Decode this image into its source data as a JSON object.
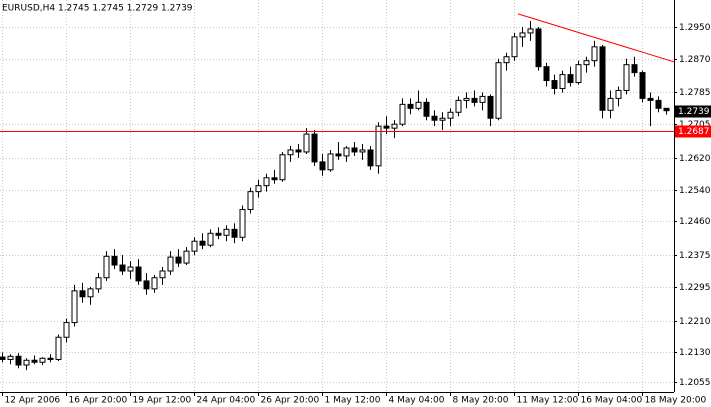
{
  "chart_data": {
    "type": "candlestick",
    "title": "EURUSD,H4  1.2745 1.2745 1.2729 1.2739",
    "categories": [
      "12 Apr 2006",
      null,
      null,
      null,
      null,
      null,
      null,
      null,
      "16 Apr 20:00",
      null,
      null,
      null,
      null,
      null,
      null,
      null,
      "19 Apr 12:00",
      null,
      null,
      null,
      null,
      null,
      null,
      null,
      "24 Apr 04:00",
      null,
      null,
      null,
      null,
      null,
      null,
      null,
      "26 Apr 20:00",
      null,
      null,
      null,
      null,
      null,
      null,
      null,
      "1 May 12:00",
      null,
      null,
      null,
      null,
      null,
      null,
      null,
      "4 May 04:00",
      null,
      null,
      null,
      null,
      null,
      null,
      null,
      "8 May 20:00",
      null,
      null,
      null,
      null,
      null,
      null,
      null,
      "11 May 12:00",
      null,
      null,
      null,
      null,
      null,
      null,
      null,
      "16 May 04:00",
      null,
      null,
      null,
      null,
      null,
      null,
      null,
      "18 May 20:00",
      null,
      null,
      null
    ],
    "candles": [
      [
        1.2118,
        1.213,
        1.2105,
        1.2112
      ],
      [
        1.2112,
        1.2125,
        1.21,
        1.212
      ],
      [
        1.212,
        1.2128,
        1.209,
        1.2098
      ],
      [
        1.2098,
        1.2115,
        1.2085,
        1.211
      ],
      [
        1.211,
        1.2122,
        1.21,
        1.2105
      ],
      [
        1.2105,
        1.2118,
        1.2098,
        1.2115
      ],
      [
        1.2115,
        1.2125,
        1.2105,
        1.2112
      ],
      [
        1.2112,
        1.2175,
        1.2108,
        1.2168
      ],
      [
        1.2168,
        1.2215,
        1.2155,
        1.2205
      ],
      [
        1.2205,
        1.23,
        1.2195,
        1.2285
      ],
      [
        1.2285,
        1.2305,
        1.2255,
        1.227
      ],
      [
        1.227,
        1.2295,
        1.225,
        1.229
      ],
      [
        1.229,
        1.233,
        1.228,
        1.2318
      ],
      [
        1.2318,
        1.2385,
        1.231,
        1.2372
      ],
      [
        1.2372,
        1.239,
        1.234,
        1.235
      ],
      [
        1.235,
        1.2375,
        1.2325,
        1.2335
      ],
      [
        1.2335,
        1.236,
        1.2315,
        1.2345
      ],
      [
        1.2345,
        1.2365,
        1.23,
        1.231
      ],
      [
        1.231,
        1.233,
        1.2275,
        1.229
      ],
      [
        1.229,
        1.2325,
        1.228,
        1.2318
      ],
      [
        1.2318,
        1.2345,
        1.23,
        1.2335
      ],
      [
        1.2335,
        1.2385,
        1.2325,
        1.237
      ],
      [
        1.237,
        1.239,
        1.2345,
        1.2355
      ],
      [
        1.2355,
        1.2395,
        1.235,
        1.2385
      ],
      [
        1.2385,
        1.242,
        1.2375,
        1.241
      ],
      [
        1.241,
        1.243,
        1.239,
        1.24
      ],
      [
        1.24,
        1.244,
        1.2395,
        1.243
      ],
      [
        1.243,
        1.2445,
        1.2415,
        1.2425
      ],
      [
        1.2425,
        1.245,
        1.241,
        1.244
      ],
      [
        1.244,
        1.2455,
        1.2405,
        1.242
      ],
      [
        1.242,
        1.25,
        1.241,
        1.249
      ],
      [
        1.249,
        1.2545,
        1.248,
        1.2535
      ],
      [
        1.2535,
        1.2565,
        1.252,
        1.255
      ],
      [
        1.255,
        1.258,
        1.2535,
        1.257
      ],
      [
        1.257,
        1.259,
        1.2555,
        1.2565
      ],
      [
        1.2565,
        1.2635,
        1.256,
        1.2628
      ],
      [
        1.2628,
        1.265,
        1.261,
        1.264
      ],
      [
        1.264,
        1.2655,
        1.262,
        1.2635
      ],
      [
        1.2635,
        1.2695,
        1.263,
        1.268
      ],
      [
        1.268,
        1.269,
        1.26,
        1.261
      ],
      [
        1.261,
        1.263,
        1.2575,
        1.259
      ],
      [
        1.259,
        1.264,
        1.2585,
        1.263
      ],
      [
        1.263,
        1.266,
        1.2615,
        1.2625
      ],
      [
        1.2625,
        1.265,
        1.261,
        1.2645
      ],
      [
        1.2645,
        1.266,
        1.2625,
        1.2635
      ],
      [
        1.2635,
        1.2655,
        1.2615,
        1.264
      ],
      [
        1.264,
        1.265,
        1.259,
        1.26
      ],
      [
        1.26,
        1.271,
        1.258,
        1.27
      ],
      [
        1.27,
        1.2725,
        1.268,
        1.2695
      ],
      [
        1.2695,
        1.2715,
        1.267,
        1.2705
      ],
      [
        1.2705,
        1.277,
        1.27,
        1.2755
      ],
      [
        1.2755,
        1.277,
        1.273,
        1.2745
      ],
      [
        1.2745,
        1.279,
        1.274,
        1.276
      ],
      [
        1.276,
        1.277,
        1.2715,
        1.2725
      ],
      [
        1.2725,
        1.274,
        1.27,
        1.2715
      ],
      [
        1.2715,
        1.2735,
        1.269,
        1.272
      ],
      [
        1.272,
        1.2745,
        1.27,
        1.2735
      ],
      [
        1.2735,
        1.2775,
        1.2725,
        1.2765
      ],
      [
        1.2765,
        1.2785,
        1.2745,
        1.277
      ],
      [
        1.277,
        1.279,
        1.275,
        1.276
      ],
      [
        1.276,
        1.2785,
        1.274,
        1.2775
      ],
      [
        1.2775,
        1.278,
        1.27,
        1.272
      ],
      [
        1.272,
        1.287,
        1.2715,
        1.286
      ],
      [
        1.286,
        1.2885,
        1.284,
        1.2875
      ],
      [
        1.2875,
        1.2935,
        1.2865,
        1.2925
      ],
      [
        1.2925,
        1.295,
        1.29,
        1.2935
      ],
      [
        1.2935,
        1.2965,
        1.2915,
        1.2945
      ],
      [
        1.2945,
        1.295,
        1.284,
        1.285
      ],
      [
        1.285,
        1.286,
        1.28,
        1.2815
      ],
      [
        1.2815,
        1.283,
        1.278,
        1.2795
      ],
      [
        1.2795,
        1.284,
        1.2785,
        1.283
      ],
      [
        1.283,
        1.285,
        1.28,
        1.281
      ],
      [
        1.281,
        1.2865,
        1.2805,
        1.2855
      ],
      [
        1.2855,
        1.2875,
        1.2835,
        1.2865
      ],
      [
        1.2865,
        1.2915,
        1.285,
        1.29
      ],
      [
        1.29,
        1.2905,
        1.272,
        1.274
      ],
      [
        1.274,
        1.279,
        1.272,
        1.277
      ],
      [
        1.277,
        1.28,
        1.275,
        1.279
      ],
      [
        1.279,
        1.287,
        1.278,
        1.2855
      ],
      [
        1.2855,
        1.2875,
        1.2825,
        1.2835
      ],
      [
        1.2835,
        1.284,
        1.276,
        1.277
      ],
      [
        1.277,
        1.2785,
        1.27,
        1.2765
      ],
      [
        1.2765,
        1.2775,
        1.2735,
        1.2745
      ],
      [
        1.2745,
        1.2745,
        1.2729,
        1.2739
      ]
    ],
    "ylim": [
      1.203,
      1.3018
    ],
    "yticks": [
      {
        "value": 1.2055,
        "label": "1.2055"
      },
      {
        "value": 1.213,
        "label": "1.2130"
      },
      {
        "value": 1.221,
        "label": "1.2210"
      },
      {
        "value": 1.2295,
        "label": "1.2295"
      },
      {
        "value": 1.2375,
        "label": "1.2375"
      },
      {
        "value": 1.246,
        "label": "1.2460"
      },
      {
        "value": 1.254,
        "label": "1.2540"
      },
      {
        "value": 1.262,
        "label": "1.2620"
      },
      {
        "value": 1.2705,
        "label": "1.2705"
      },
      {
        "value": 1.2785,
        "label": "1.2785"
      },
      {
        "value": 1.287,
        "label": "1.2870"
      },
      {
        "value": 1.295,
        "label": "1.2950"
      }
    ],
    "grid": true,
    "bid": 1.2739,
    "hline": {
      "value": 1.2687,
      "color": "#ff0000"
    },
    "trendline": {
      "x": [
        64.5,
        84
      ],
      "y": [
        1.2983,
        1.2862
      ],
      "color": "#ff0000"
    }
  }
}
